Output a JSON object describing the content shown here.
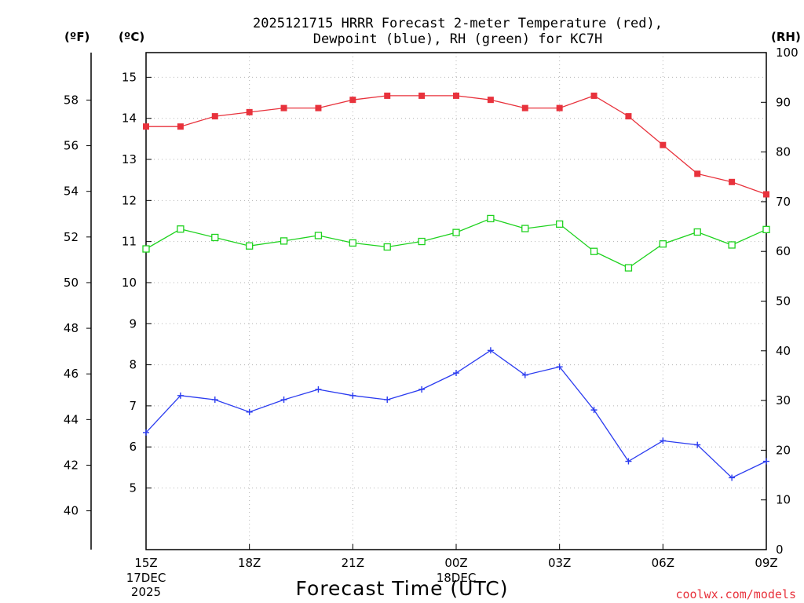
{
  "chart_data": {
    "type": "line",
    "title_line1": "2025121715 HRRR Forecast 2-meter Temperature (red),",
    "title_line2": "Dewpoint (blue), RH (green) for KC7H",
    "xlabel": "Forecast Time (UTC)",
    "credit": "coolwx.com/models",
    "axis_units": {
      "fahrenheit": "(ºF)",
      "celsius": "(ºC)",
      "rh": "(RH)"
    },
    "x_hours": [
      0,
      1,
      2,
      3,
      4,
      5,
      6,
      7,
      8,
      9,
      10,
      11,
      12,
      13,
      14,
      15,
      16,
      17,
      18
    ],
    "x_ticks": [
      {
        "hour": 0,
        "label": "15Z",
        "sub1": "17DEC",
        "sub2": "2025"
      },
      {
        "hour": 3,
        "label": "18Z"
      },
      {
        "hour": 6,
        "label": "21Z"
      },
      {
        "hour": 9,
        "label": "00Z",
        "sub1": "18DEC"
      },
      {
        "hour": 12,
        "label": "03Z"
      },
      {
        "hour": 15,
        "label": "06Z"
      },
      {
        "hour": 18,
        "label": "09Z"
      }
    ],
    "celsius_range": [
      3.5,
      15.6
    ],
    "celsius_ticks": [
      5,
      6,
      7,
      8,
      9,
      10,
      11,
      12,
      13,
      14,
      15
    ],
    "fahrenheit_ticks": [
      40,
      42,
      44,
      46,
      48,
      50,
      52,
      54,
      56,
      58
    ],
    "rh_range": [
      0,
      100
    ],
    "rh_ticks": [
      0,
      10,
      20,
      30,
      40,
      50,
      60,
      70,
      80,
      90,
      100
    ],
    "series": [
      {
        "name": "Temperature",
        "units": "C",
        "color": "#e8323c",
        "marker": "filled-square",
        "values": [
          13.8,
          13.8,
          14.05,
          14.15,
          14.25,
          14.25,
          14.45,
          14.55,
          14.55,
          14.55,
          14.45,
          14.25,
          14.25,
          14.55,
          14.05,
          13.35,
          12.65,
          12.45,
          12.15
        ]
      },
      {
        "name": "Dewpoint",
        "units": "C",
        "color": "#2b3cf0",
        "marker": "plus",
        "values": [
          6.35,
          7.25,
          7.15,
          6.85,
          7.15,
          7.4,
          7.25,
          7.15,
          7.4,
          7.8,
          8.35,
          7.75,
          7.95,
          6.9,
          5.65,
          6.15,
          6.05,
          5.25,
          5.65
        ]
      },
      {
        "name": "RH",
        "units": "%",
        "color": "#1ed21e",
        "marker": "open-square",
        "values": [
          60.5,
          64.5,
          62.8,
          61.1,
          62.1,
          63.2,
          61.7,
          60.9,
          62.0,
          63.8,
          66.6,
          64.6,
          65.5,
          60.0,
          56.7,
          61.5,
          63.9,
          61.3,
          64.4
        ]
      }
    ]
  }
}
